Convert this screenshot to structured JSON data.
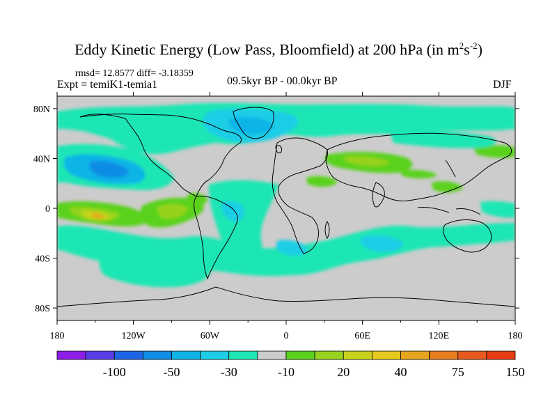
{
  "title": {
    "main": "Eddy Kinetic Energy (Low Pass, Bloomfield) at 200 hPa (in m",
    "exp1": "2",
    "mid": "s",
    "exp2": "-2",
    "end": ")"
  },
  "stats": "rmsd= 12.8577  diff= -3.18359",
  "experiment": "Expt = temiK1-temia1",
  "period": "09.5kyr BP - 00.0kyr BP",
  "season": "DJF",
  "map": {
    "background_color": "#cccccc",
    "x_ticks": [
      "180",
      "120W",
      "60W",
      "0",
      "60E",
      "120E",
      "180"
    ],
    "y_ticks": [
      "80N",
      "40N",
      "0",
      "40S",
      "80S"
    ]
  },
  "colorbar": {
    "colors": [
      "#8c1ee6",
      "#5a3ce6",
      "#1e64e6",
      "#0f8ce6",
      "#0fb4e6",
      "#1ecde6",
      "#1ee6b4",
      "#cccccc",
      "#5ad21e",
      "#96d21e",
      "#c8d21e",
      "#e6c81e",
      "#e6a51e",
      "#e67d1e",
      "#e65a1e",
      "#e63c14"
    ],
    "labels": [
      {
        "text": "-100",
        "boundary": 2
      },
      {
        "text": "-50",
        "boundary": 4
      },
      {
        "text": "-30",
        "boundary": 6
      },
      {
        "text": "-10",
        "boundary": 8
      },
      {
        "text": "20",
        "boundary": 10
      },
      {
        "text": "40",
        "boundary": 12
      },
      {
        "text": "75",
        "boundary": 14
      },
      {
        "text": "150",
        "boundary": 16
      }
    ]
  }
}
